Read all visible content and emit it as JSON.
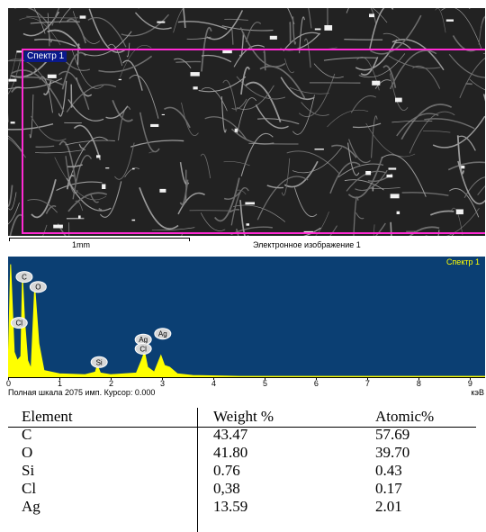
{
  "sem_image": {
    "selection_label": "Спектр 1",
    "scale_bar_label": "1mm",
    "caption": "Электронное изображение 1",
    "selection_color": "#ff2ad4"
  },
  "chart_data": {
    "type": "line",
    "legend": "Спектр 1",
    "xlim": [
      0,
      9.3
    ],
    "x_ticks": [
      "0",
      "1",
      "2",
      "3",
      "4",
      "5",
      "6",
      "7",
      "8",
      "9"
    ],
    "x_unit": "кэВ",
    "status_text": "Полная шкала 2075 имп. Курсор: 0.000",
    "line_color": "#ffff00",
    "background_color": "#0b3f73",
    "series": [
      {
        "values": [
          [
            0.0,
            10
          ],
          [
            0.05,
            135
          ],
          [
            0.12,
            30
          ],
          [
            0.18,
            20
          ],
          [
            0.25,
            25
          ],
          [
            0.28,
            120
          ],
          [
            0.32,
            70
          ],
          [
            0.38,
            20
          ],
          [
            0.45,
            10
          ],
          [
            0.52,
            108
          ],
          [
            0.6,
            40
          ],
          [
            0.7,
            8
          ],
          [
            1.0,
            4
          ],
          [
            1.5,
            3
          ],
          [
            1.7,
            6
          ],
          [
            1.74,
            14
          ],
          [
            1.8,
            5
          ],
          [
            2.0,
            3
          ],
          [
            2.5,
            5
          ],
          [
            2.6,
            20
          ],
          [
            2.66,
            30
          ],
          [
            2.72,
            12
          ],
          [
            2.85,
            6
          ],
          [
            2.98,
            26
          ],
          [
            3.05,
            14
          ],
          [
            3.15,
            12
          ],
          [
            3.3,
            4
          ],
          [
            3.6,
            2
          ],
          [
            4.5,
            1
          ],
          [
            6.0,
            1
          ],
          [
            9.3,
            1
          ]
        ]
      }
    ],
    "peak_labels": [
      {
        "label": "C",
        "x": 0.28,
        "y": 120
      },
      {
        "label": "O",
        "x": 0.55,
        "y": 108
      },
      {
        "label": "Cl",
        "x": 0.18,
        "y": 65
      },
      {
        "label": "Si",
        "x": 1.74,
        "y": 18
      },
      {
        "label": "Ag",
        "x": 2.6,
        "y": 45
      },
      {
        "label": "Cl",
        "x": 2.6,
        "y": 34
      },
      {
        "label": "Ag",
        "x": 2.98,
        "y": 52
      }
    ]
  },
  "results_table": {
    "headers": [
      "Element",
      "Weight %",
      "Atomic%"
    ],
    "rows": [
      [
        "C",
        "43.47",
        "57.69"
      ],
      [
        "O",
        "41.80",
        "39.70"
      ],
      [
        "Si",
        "0.76",
        "0.43"
      ],
      [
        "Cl",
        "0,38",
        "0.17"
      ],
      [
        "Ag",
        "13.59",
        "2.01"
      ]
    ]
  }
}
